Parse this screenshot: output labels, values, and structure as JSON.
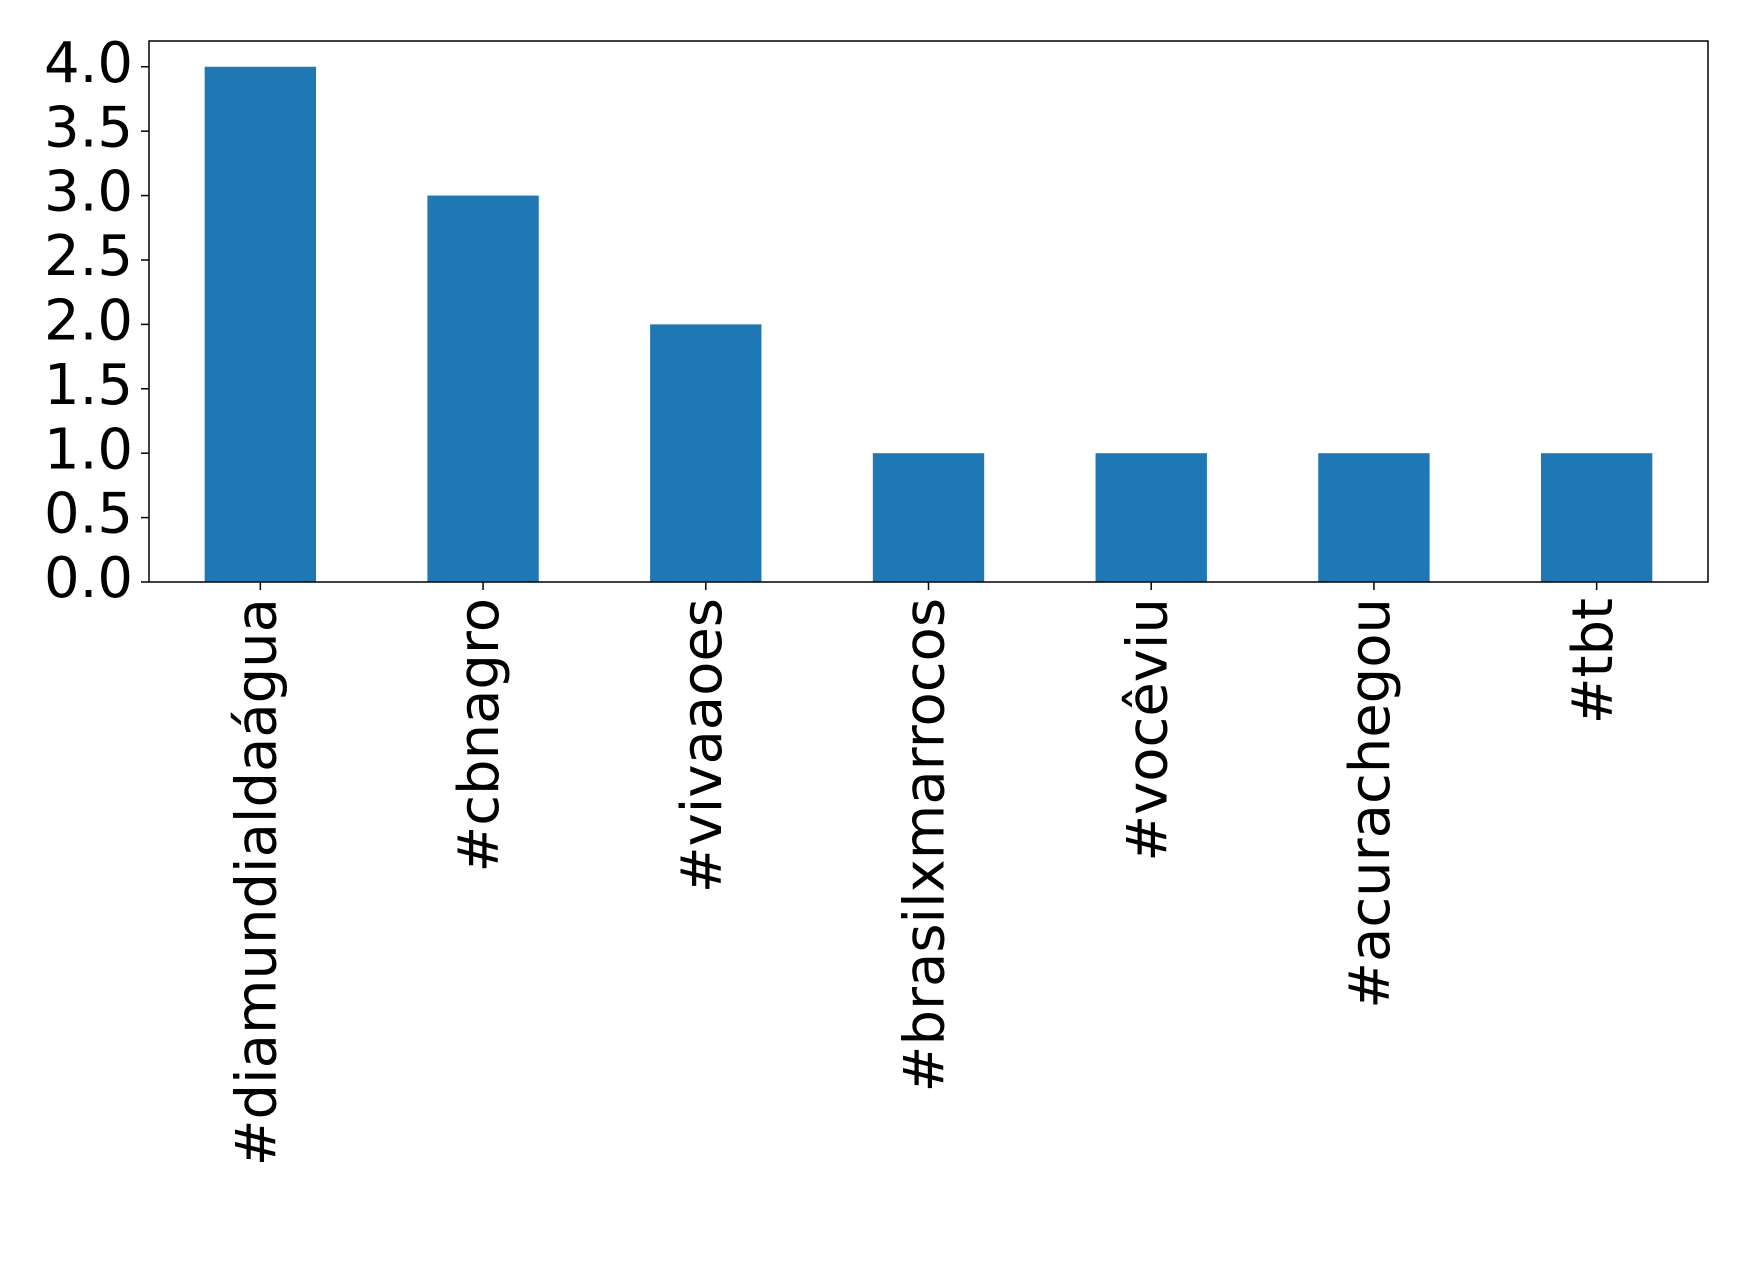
{
  "chart_data": {
    "type": "bar",
    "categories": [
      "#diamundialdaágua",
      "#cbnagro",
      "#vivaaoes",
      "#brasilxmarrocos",
      "#vocêviu",
      "#acurachegou",
      "#tbt"
    ],
    "values": [
      4,
      3,
      2,
      1,
      1,
      1,
      1
    ],
    "color": "#1f77b4",
    "ylim": [
      0,
      4.2
    ],
    "yticks": [
      {
        "value": 0,
        "label": "0.0"
      },
      {
        "value": 0.5,
        "label": "0.5"
      },
      {
        "value": 1,
        "label": "1.0"
      },
      {
        "value": 1.5,
        "label": "1.5"
      },
      {
        "value": 2,
        "label": "2.0"
      },
      {
        "value": 2.5,
        "label": "2.5"
      },
      {
        "value": 3,
        "label": "3.0"
      },
      {
        "value": 3.5,
        "label": "3.5"
      },
      {
        "value": 4,
        "label": "4.0"
      }
    ],
    "grid": false
  }
}
